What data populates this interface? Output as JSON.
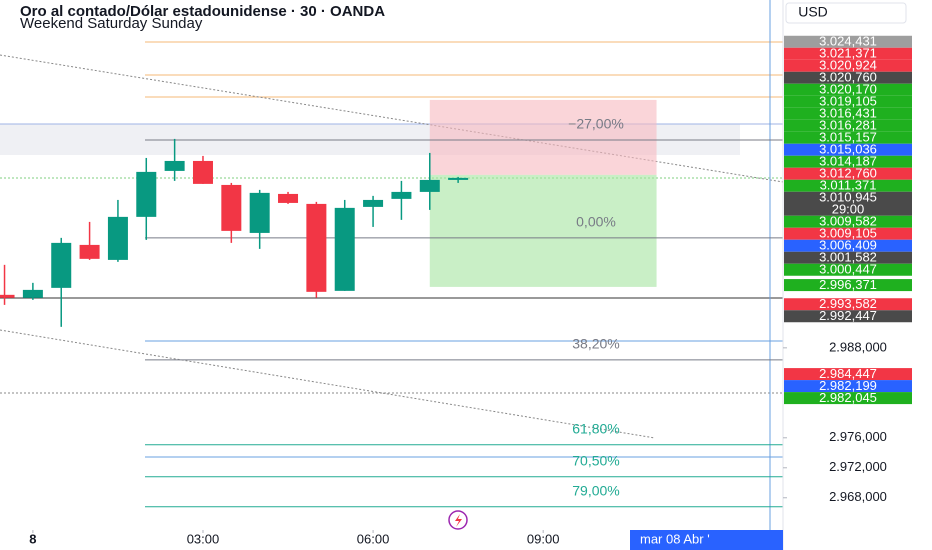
{
  "chart_data": {
    "type": "candlestick",
    "title": "Oro al contado/Dólar estadounidense · 30 · OANDA",
    "subtitle": "Weekend Saturday Sunday",
    "currency": "USD",
    "date_label": "mar 08 Abr '",
    "xlim": [
      -0.58,
      13.23
    ],
    "ylim": [
      2.9637,
      3.0344
    ],
    "xticks": [
      {
        "value": 0,
        "label": "8"
      },
      {
        "value": 3,
        "label": "03:00"
      },
      {
        "value": 6,
        "label": "06:00"
      },
      {
        "value": 9,
        "label": "09:00"
      }
    ],
    "yticks": [
      {
        "value": 2.968,
        "label": "2.968,000"
      },
      {
        "value": 2.972,
        "label": "2.972,000"
      },
      {
        "value": 2.976,
        "label": "2.976,000"
      },
      {
        "value": 2.988,
        "label": "2.988,000"
      }
    ],
    "up_color": "#089981",
    "down_color": "#f23645",
    "x": [
      -0.5,
      0,
      0.5,
      1,
      1.5,
      2,
      2.5,
      3,
      3.5,
      4,
      4.5,
      5,
      5.5,
      6,
      6.5,
      7,
      7.5
    ],
    "open": [
      2.99507,
      2.99467,
      2.996,
      3.00173,
      2.99973,
      3.00547,
      3.0116,
      3.01293,
      3.00973,
      3.00333,
      3.00853,
      3.0072,
      2.9956,
      3.0068,
      3.00787,
      3.0088,
      3.0104
    ],
    "high": [
      2.99907,
      2.99667,
      3.00267,
      3.0048,
      3.00773,
      3.01333,
      3.01587,
      3.0136,
      3.01,
      3.00907,
      3.0088,
      3.00747,
      3.00773,
      3.00827,
      3.01027,
      3.014,
      3.0108
    ],
    "low": [
      2.99373,
      2.9944,
      2.9908,
      2.99973,
      2.99947,
      3.0024,
      3.01027,
      3.00987,
      3.002,
      3.0012,
      3.0072,
      2.99467,
      2.9956,
      3.00413,
      3.00507,
      3.0064,
      3.01
    ],
    "close": [
      2.99467,
      2.99573,
      3.002,
      2.99987,
      3.00547,
      3.01147,
      3.01293,
      3.00987,
      3.0036,
      3.00867,
      3.00733,
      2.99547,
      3.00667,
      3.00773,
      3.0088,
      3.0104,
      3.01067
    ],
    "position": {
      "stop": 3.02107,
      "entry": 3.01107,
      "target": 2.99613,
      "start": 7.0,
      "end": 11.0
    },
    "fib_levels": [
      {
        "label": "−27,00%",
        "price": 3.01573,
        "color": "#787b86"
      },
      {
        "label": "0,00%",
        "price": 3.00267,
        "color": "#787b86"
      },
      {
        "label": "38,20%",
        "price": 2.9864,
        "color": "#787b86"
      },
      {
        "label": "61,80%",
        "price": 2.97507,
        "color": "#22ab94"
      },
      {
        "label": "70,50%",
        "price": 2.9708,
        "color": "#22ab94"
      },
      {
        "label": "79,00%",
        "price": 2.9668,
        "color": "#22ab94"
      }
    ],
    "price_tags": [
      {
        "value": 3.024431,
        "label": "3.024,431",
        "color": "#9e9e9e"
      },
      {
        "value": 3.021371,
        "label": "3.021,371",
        "color": "#f23645"
      },
      {
        "value": 3.020924,
        "label": "3.020,924",
        "color": "#f23645"
      },
      {
        "value": 3.02076,
        "label": "3.020,760",
        "color": "#4a4a4a"
      },
      {
        "value": 3.02017,
        "label": "3.020,170",
        "color": "#1fb01f"
      },
      {
        "value": 3.019105,
        "label": "3.019,105",
        "color": "#1fb01f"
      },
      {
        "value": 3.016431,
        "label": "3.016,431",
        "color": "#1fb01f"
      },
      {
        "value": 3.016281,
        "label": "3.016,281",
        "color": "#1fb01f"
      },
      {
        "value": 3.015157,
        "label": "3.015,157",
        "color": "#1fb01f"
      },
      {
        "value": 3.015036,
        "label": "3.015,036",
        "color": "#2962ff"
      },
      {
        "value": 3.014187,
        "label": "3.014,187",
        "color": "#1fb01f"
      },
      {
        "value": 3.01276,
        "label": "3.012,760",
        "color": "#f23645"
      },
      {
        "value": 3.011371,
        "label": "3.011,371",
        "color": "#1fb01f"
      },
      {
        "value": 3.010945,
        "label": "3.010,945",
        "color": "#4a4a4a",
        "countdown": "29:00"
      },
      {
        "value": 3.009582,
        "label": "3.009,582",
        "color": "#1fb01f"
      },
      {
        "value": 3.009105,
        "label": "3.009,105",
        "color": "#f23645"
      },
      {
        "value": 3.006409,
        "label": "3.006,409",
        "color": "#2962ff"
      },
      {
        "value": 3.001582,
        "label": "3.001,582",
        "color": "#4a4a4a"
      },
      {
        "value": 3.000447,
        "label": "3.000,447",
        "color": "#1fb01f"
      },
      {
        "value": 2.996371,
        "label": "2.996,371",
        "color": "#1fb01f"
      },
      {
        "value": 2.993582,
        "label": "2.993,582",
        "color": "#f23645"
      },
      {
        "value": 2.992447,
        "label": "2.992,447",
        "color": "#4a4a4a"
      },
      {
        "value": 2.984447,
        "label": "2.984,447",
        "color": "#f23645"
      },
      {
        "value": 2.982199,
        "label": "2.982,199",
        "color": "#2962ff"
      },
      {
        "value": 2.982045,
        "label": "2.982,045",
        "color": "#1fb01f"
      }
    ]
  }
}
